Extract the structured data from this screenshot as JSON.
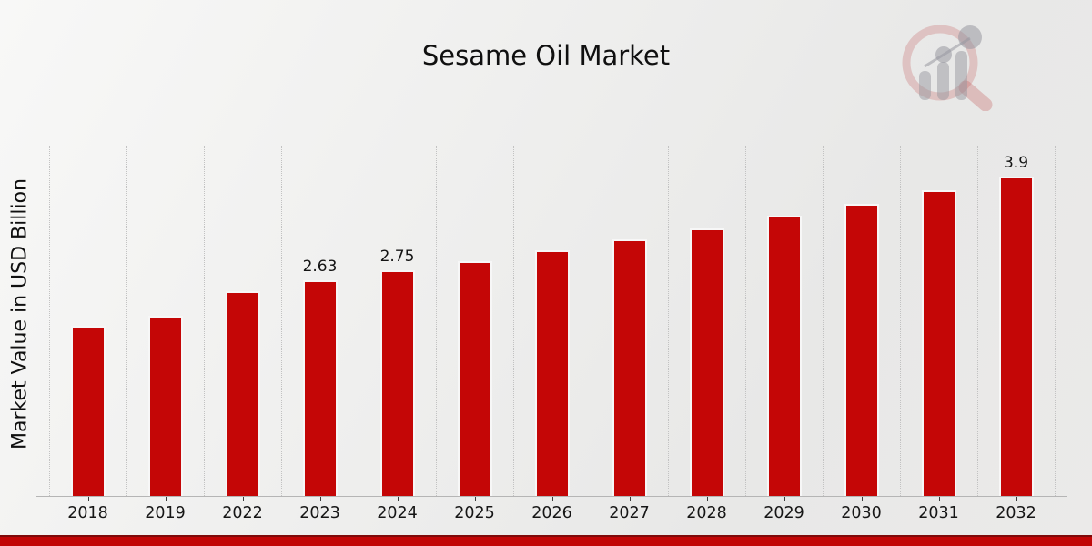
{
  "header": {
    "title": "Sesame Oil Market"
  },
  "logo": {
    "name": "market-research-magnifier-logo",
    "ring_color": "rgba(193,85,85,0.26)",
    "element_color": "rgba(152,152,160,0.5)"
  },
  "chart_data": {
    "type": "bar",
    "title": "Sesame Oil Market",
    "xlabel": "",
    "ylabel": "Market Value in USD Billion",
    "categories": [
      "2018",
      "2019",
      "2022",
      "2023",
      "2024",
      "2025",
      "2026",
      "2027",
      "2028",
      "2029",
      "2030",
      "2031",
      "2032"
    ],
    "values": [
      2.08,
      2.2,
      2.5,
      2.63,
      2.75,
      2.87,
      3.0,
      3.13,
      3.27,
      3.42,
      3.57,
      3.73,
      3.9
    ],
    "data_labels": [
      "",
      "",
      "",
      "2.63",
      "2.75",
      "",
      "",
      "",
      "",
      "",
      "",
      "",
      "3.9"
    ],
    "ylim": [
      0,
      4.33
    ],
    "grid": "vertical-dotted-category-boundaries",
    "legend": "none",
    "bar_color": "#c40606"
  },
  "footer": {
    "stripe_color": "#c10505",
    "stripe_edge_color": "#7e0a0a"
  }
}
